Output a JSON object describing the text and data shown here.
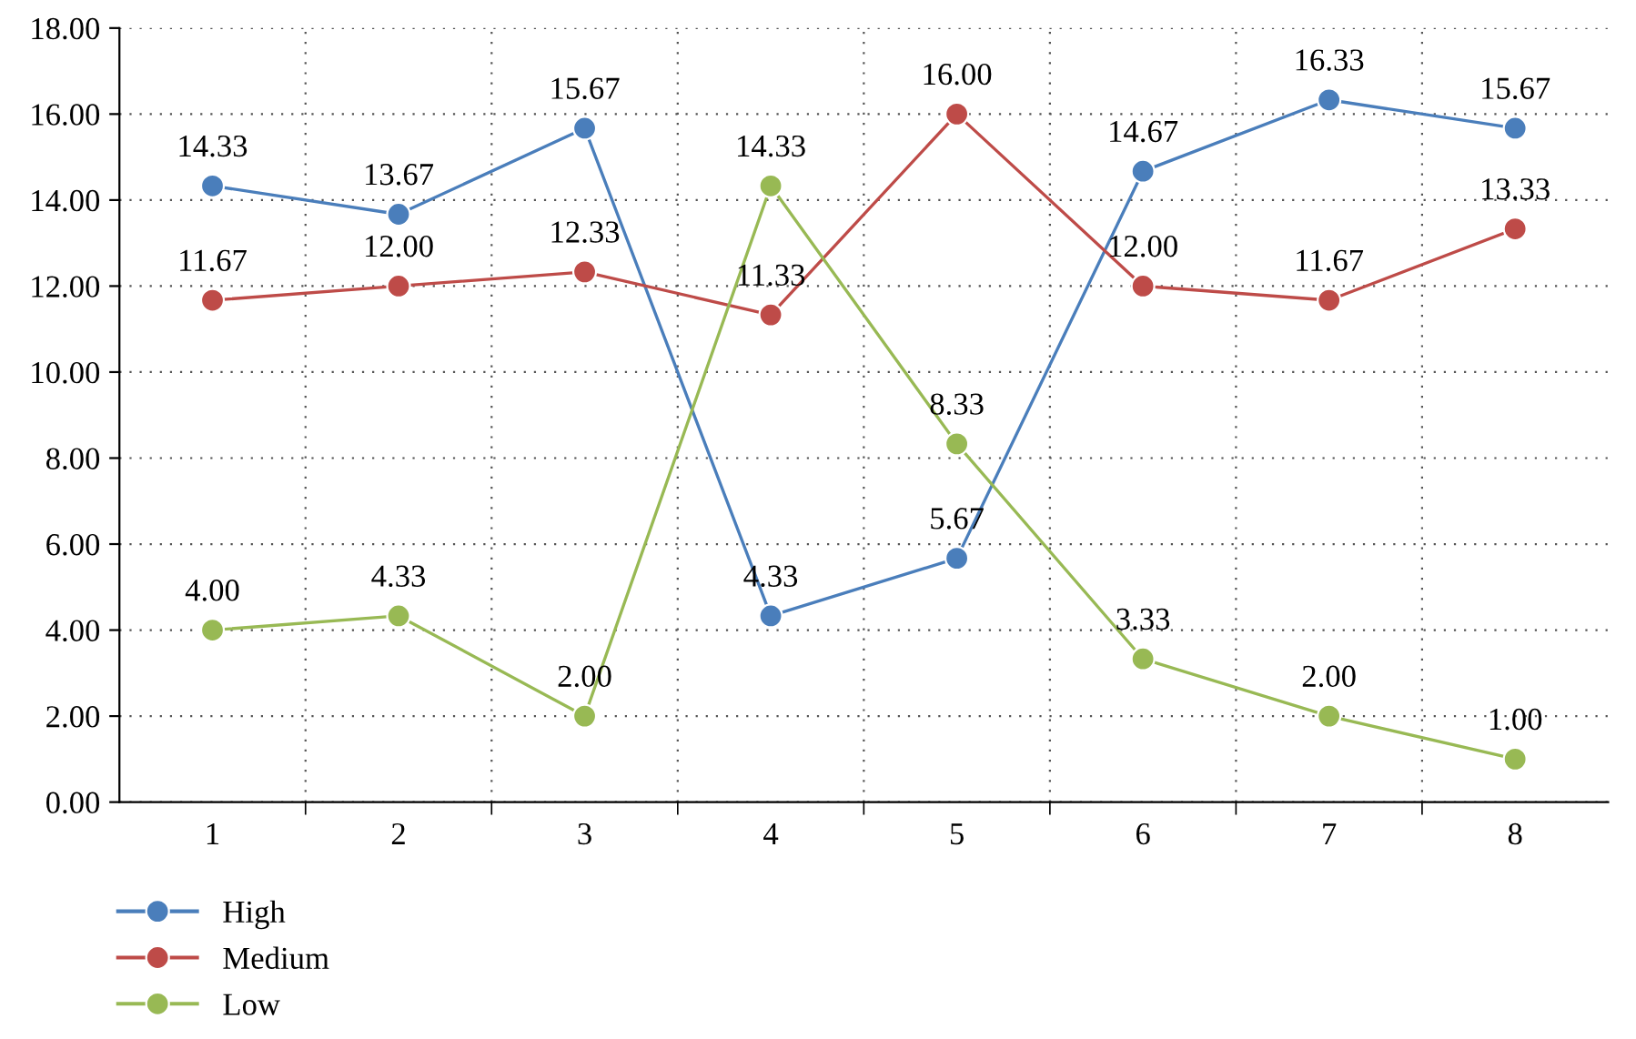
{
  "chart_data": {
    "type": "line",
    "categories": [
      "1",
      "2",
      "3",
      "4",
      "5",
      "6",
      "7",
      "8"
    ],
    "series": [
      {
        "name": "High",
        "color": "#4a7ebb",
        "values": [
          14.33,
          13.67,
          15.67,
          4.33,
          5.67,
          14.67,
          16.33,
          15.67
        ],
        "value_labels": [
          "14.33",
          "13.67",
          "15.67",
          "4.33",
          "5.67",
          "14.67",
          "16.33",
          "15.67"
        ]
      },
      {
        "name": "Medium",
        "color": "#be4b48",
        "values": [
          11.67,
          12.0,
          12.33,
          11.33,
          16.0,
          12.0,
          11.67,
          13.33
        ],
        "value_labels": [
          "11.67",
          "12.00",
          "12.33",
          "11.33",
          "16.00",
          "12.00",
          "11.67",
          "13.33"
        ]
      },
      {
        "name": "Low",
        "color": "#98b954",
        "values": [
          4.0,
          4.33,
          2.0,
          14.33,
          8.33,
          3.33,
          2.0,
          1.0
        ],
        "value_labels": [
          "4.00",
          "4.33",
          "2.00",
          "14.33",
          "8.33",
          "3.33",
          "2.00",
          "1.00"
        ]
      }
    ],
    "ylim": [
      0,
      18
    ],
    "yticks": [
      {
        "value": 0,
        "label": "0.00"
      },
      {
        "value": 2,
        "label": "2.00"
      },
      {
        "value": 4,
        "label": "4.00"
      },
      {
        "value": 6,
        "label": "6.00"
      },
      {
        "value": 8,
        "label": "8.00"
      },
      {
        "value": 10,
        "label": "10.00"
      },
      {
        "value": 12,
        "label": "12.00"
      },
      {
        "value": 14,
        "label": "14.00"
      },
      {
        "value": 16,
        "label": "16.00"
      },
      {
        "value": 18,
        "label": "18.00"
      }
    ],
    "grid": true,
    "legend": "bottom left",
    "marker": "circle",
    "line_style": "solid"
  }
}
